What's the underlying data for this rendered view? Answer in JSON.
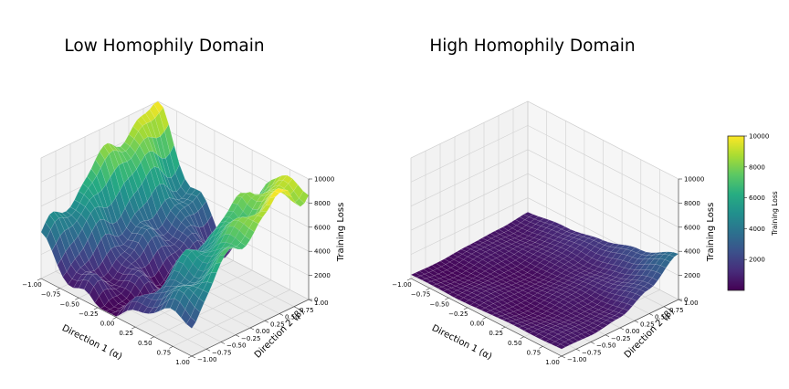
{
  "chart_data": [
    {
      "type": "surface3d",
      "title": "Low Homophily Domain",
      "xlabel": "Direction 1 (α)",
      "ylabel": "Direction 2 (β)",
      "zlabel": "Training Loss",
      "xlim": [
        -1.0,
        1.0
      ],
      "ylim": [
        -1.0,
        1.0
      ],
      "zlim": [
        0,
        10000
      ],
      "xticks": [
        "−1.00",
        "−0.75",
        "−0.50",
        "−0.25",
        "0.00",
        "0.25",
        "0.50",
        "0.75",
        "1.00"
      ],
      "yticks": [
        "−1.00",
        "−0.75",
        "−0.50",
        "−0.25",
        "0.00",
        "0.25",
        "0.50",
        "0.75",
        "1.00"
      ],
      "zticks": [
        "0",
        "2000",
        "4000",
        "6000",
        "8000",
        "10000"
      ],
      "surface": {
        "description": "rugged landscape: high ridges at alpha≈-1 and alpha≈+0.6..1, low basin in the middle",
        "grid_alpha": [
          -1.0,
          -0.5,
          0.0,
          0.5,
          1.0
        ],
        "grid_beta": [
          -1.0,
          -0.5,
          0.0,
          0.5,
          1.0
        ],
        "loss": [
          [
            3500,
            5500,
            7500,
            9000,
            9500
          ],
          [
            600,
            1500,
            2500,
            3500,
            3800
          ],
          [
            200,
            300,
            600,
            900,
            1000
          ],
          [
            2500,
            4500,
            6000,
            7500,
            8500
          ],
          [
            3000,
            6000,
            8000,
            9500,
            9000
          ]
        ]
      }
    },
    {
      "type": "surface3d",
      "title": "High Homophily Domain",
      "xlabel": "Direction 1 (α)",
      "ylabel": "Direction 2 (β)",
      "zlabel": "Training Loss",
      "xlim": [
        -1.0,
        1.0
      ],
      "ylim": [
        -1.0,
        1.0
      ],
      "zlim": [
        0,
        10000
      ],
      "xticks": [
        "−1.00",
        "−0.75",
        "−0.50",
        "−0.25",
        "0.00",
        "0.25",
        "0.50",
        "0.75",
        "1.00"
      ],
      "yticks": [
        "−1.00",
        "−0.75",
        "−0.50",
        "−0.25",
        "0.00",
        "0.25",
        "0.50",
        "0.75",
        "1.00"
      ],
      "zticks": [
        "0",
        "2000",
        "4000",
        "6000",
        "8000",
        "10000"
      ],
      "surface": {
        "description": "smooth shallow bowl, mostly low loss, rising toward alpha=1, beta=1 corner",
        "grid_alpha": [
          -1.0,
          -0.5,
          0.0,
          0.5,
          1.0
        ],
        "grid_beta": [
          -1.0,
          -0.5,
          0.0,
          0.5,
          1.0
        ],
        "loss": [
          [
            300,
            300,
            400,
            600,
            800
          ],
          [
            300,
            250,
            400,
            700,
            1200
          ],
          [
            400,
            300,
            400,
            800,
            1700
          ],
          [
            500,
            400,
            600,
            1200,
            2500
          ],
          [
            600,
            500,
            900,
            2000,
            3800
          ]
        ]
      }
    }
  ],
  "colorbar": {
    "label": "Training Loss",
    "ticks": [
      "2000",
      "4000",
      "6000",
      "8000",
      "10000"
    ],
    "min": 0,
    "max": 10000,
    "colormap": "viridis"
  }
}
